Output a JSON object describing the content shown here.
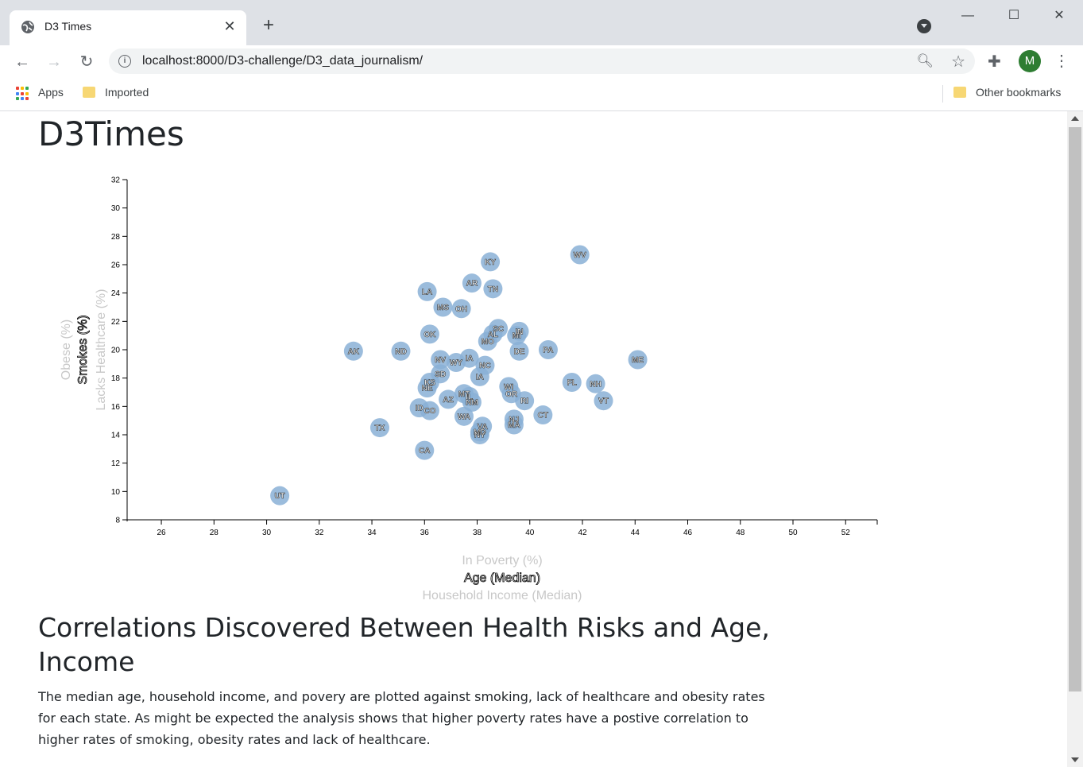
{
  "browser": {
    "tab_title": "D3 Times",
    "url": "localhost:8000/D3-challenge/D3_data_journalism/",
    "avatar_letter": "M",
    "bookmarks": [
      {
        "label": "Apps"
      },
      {
        "label": "Imported"
      }
    ],
    "other_bookmarks": "Other bookmarks"
  },
  "page": {
    "title": "D3Times",
    "article_title": "Correlations Discovered Between Health Risks and Age, Income",
    "article_body": "The median age, household income, and povery are plotted against smoking, lack of healthcare and obesity rates for each state. As might be expected the analysis shows that higher poverty rates have a postive correlation to higher rates of smoking, obesity rates and lack of healthcare."
  },
  "chart_data": {
    "type": "scatter",
    "x_labels": [
      "In Poverty (%)",
      "Age (Median)",
      "Household Income (Median)"
    ],
    "x_active": "Age (Median)",
    "y_labels": [
      "Obese (%)",
      "Smokes (%)",
      "Lacks Healthcare (%)"
    ],
    "y_active": "Smokes (%)",
    "xlim": [
      24.7,
      53.2
    ],
    "ylim": [
      8,
      32
    ],
    "x_ticks": [
      26,
      28,
      30,
      32,
      34,
      36,
      38,
      40,
      42,
      44,
      46,
      48,
      50,
      52
    ],
    "y_ticks": [
      8,
      10,
      12,
      14,
      16,
      18,
      20,
      22,
      24,
      26,
      28,
      30,
      32
    ],
    "points": [
      {
        "abbr": "WV",
        "x": 41.9,
        "y": 26.7
      },
      {
        "abbr": "KY",
        "x": 38.5,
        "y": 26.2
      },
      {
        "abbr": "AR",
        "x": 37.8,
        "y": 24.7
      },
      {
        "abbr": "TN",
        "x": 38.6,
        "y": 24.3
      },
      {
        "abbr": "LA",
        "x": 36.1,
        "y": 24.1
      },
      {
        "abbr": "MS",
        "x": 36.7,
        "y": 23.0
      },
      {
        "abbr": "OH",
        "x": 37.4,
        "y": 22.9
      },
      {
        "abbr": "SC",
        "x": 38.8,
        "y": 21.5
      },
      {
        "abbr": "OK",
        "x": 36.2,
        "y": 21.1
      },
      {
        "abbr": "AL",
        "x": 38.6,
        "y": 21.1
      },
      {
        "abbr": "MI",
        "x": 39.5,
        "y": 21.0
      },
      {
        "abbr": "MO",
        "x": 38.4,
        "y": 20.6
      },
      {
        "abbr": "IN",
        "x": 39.6,
        "y": 21.3
      },
      {
        "abbr": "AK",
        "x": 33.3,
        "y": 19.9
      },
      {
        "abbr": "ND",
        "x": 35.1,
        "y": 19.9
      },
      {
        "abbr": "DE",
        "x": 39.6,
        "y": 19.9
      },
      {
        "abbr": "PA",
        "x": 40.7,
        "y": 20.0
      },
      {
        "abbr": "ME",
        "x": 44.1,
        "y": 19.3
      },
      {
        "abbr": "NV",
        "x": 36.6,
        "y": 19.3
      },
      {
        "abbr": "WY",
        "x": 37.2,
        "y": 19.1
      },
      {
        "abbr": "IA",
        "x": 37.7,
        "y": 19.4
      },
      {
        "abbr": "NC",
        "x": 38.3,
        "y": 18.9
      },
      {
        "abbr": "SD",
        "x": 36.6,
        "y": 18.3
      },
      {
        "abbr": "IA",
        "x": 38.1,
        "y": 18.1
      },
      {
        "abbr": "KS",
        "x": 36.2,
        "y": 17.7
      },
      {
        "abbr": "NE",
        "x": 36.1,
        "y": 17.3
      },
      {
        "abbr": "FL",
        "x": 41.6,
        "y": 17.7
      },
      {
        "abbr": "NH",
        "x": 42.5,
        "y": 17.6
      },
      {
        "abbr": "WI",
        "x": 39.2,
        "y": 17.4
      },
      {
        "abbr": "OR",
        "x": 39.3,
        "y": 16.9
      },
      {
        "abbr": "MT",
        "x": 37.5,
        "y": 16.9
      },
      {
        "abbr": "AZ",
        "x": 36.9,
        "y": 16.5
      },
      {
        "abbr": "IL",
        "x": 37.7,
        "y": 16.7
      },
      {
        "abbr": "NM",
        "x": 37.8,
        "y": 16.3
      },
      {
        "abbr": "RI",
        "x": 39.8,
        "y": 16.4
      },
      {
        "abbr": "VT",
        "x": 42.8,
        "y": 16.4
      },
      {
        "abbr": "ID",
        "x": 35.8,
        "y": 15.9
      },
      {
        "abbr": "CO",
        "x": 36.2,
        "y": 15.7
      },
      {
        "abbr": "WA",
        "x": 37.5,
        "y": 15.3
      },
      {
        "abbr": "CT",
        "x": 40.5,
        "y": 15.4
      },
      {
        "abbr": "TX",
        "x": 34.3,
        "y": 14.5
      },
      {
        "abbr": "NJ",
        "x": 39.4,
        "y": 15.1
      },
      {
        "abbr": "MA",
        "x": 39.4,
        "y": 14.7
      },
      {
        "abbr": "VA",
        "x": 38.2,
        "y": 14.6
      },
      {
        "abbr": "MD",
        "x": 38.1,
        "y": 14.2
      },
      {
        "abbr": "NY",
        "x": 38.1,
        "y": 14.0
      },
      {
        "abbr": "CA",
        "x": 36.0,
        "y": 12.9
      },
      {
        "abbr": "UT",
        "x": 30.5,
        "y": 9.7
      }
    ]
  }
}
